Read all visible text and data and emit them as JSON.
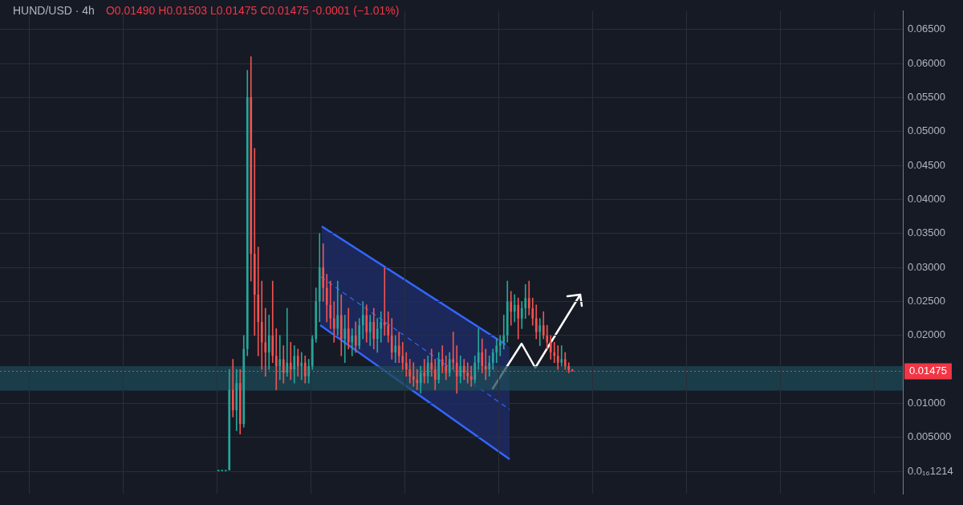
{
  "chart_data": {
    "type": "candlestick",
    "title": "HUND/USD · 4h",
    "subtitle": "O0.01490 H0.01503 L0.01475 C0.01475 -0.0001 (−1.01%)",
    "categories": [
      null,
      null,
      null,
      null,
      null,
      null,
      null,
      null,
      null,
      null,
      null,
      null,
      null,
      null,
      null,
      null,
      null,
      null,
      null,
      null,
      null,
      null,
      null,
      null,
      null,
      null,
      null,
      null,
      null,
      null,
      null,
      null,
      null,
      null,
      null,
      null,
      null,
      null,
      null,
      null,
      null,
      null,
      null,
      null,
      null,
      null,
      null,
      null,
      null,
      null,
      null,
      null,
      null,
      null,
      null,
      null,
      null,
      null,
      null,
      null,
      null,
      null,
      null,
      null,
      null,
      null,
      null,
      null,
      null,
      null,
      null,
      null,
      null,
      null,
      null,
      null,
      null,
      null,
      null,
      null,
      null,
      null,
      null,
      null,
      null,
      null,
      null,
      null,
      null,
      null,
      null,
      null,
      null,
      null,
      null,
      null,
      null,
      null,
      null,
      null,
      null,
      null,
      null,
      null,
      null,
      null,
      null,
      null,
      null,
      null,
      null,
      null,
      null,
      null,
      null,
      null,
      null,
      null,
      null,
      null,
      null,
      null,
      null,
      null,
      null,
      null,
      null,
      null,
      null,
      null,
      null,
      null,
      null,
      null,
      null,
      null,
      null,
      null,
      null,
      null,
      null,
      null,
      null,
      null,
      null,
      null,
      null,
      null,
      null,
      null,
      null,
      null,
      null,
      null,
      null,
      null,
      null,
      null,
      null,
      null,
      null,
      null,
      null,
      null,
      null,
      null,
      null,
      null,
      null,
      null,
      null,
      null,
      null,
      null,
      null,
      null,
      null,
      null,
      null,
      null,
      null,
      null,
      null,
      null,
      null,
      null,
      null,
      null,
      null,
      null,
      null,
      null,
      null,
      null,
      null,
      null,
      null,
      null,
      null,
      null,
      null,
      null,
      null,
      null,
      null,
      null,
      null,
      null,
      null,
      null,
      null,
      null,
      null,
      null,
      null,
      null,
      null,
      null,
      null,
      null,
      null,
      null,
      null,
      null,
      null,
      null,
      null,
      null,
      null,
      null,
      null,
      null,
      null,
      null,
      null,
      null,
      null,
      null,
      null,
      null,
      null,
      null,
      null,
      null,
      null,
      null,
      null,
      null,
      null,
      null
    ],
    "ohlc": [
      null,
      null,
      null,
      null,
      null,
      null,
      null,
      null,
      null,
      null,
      null,
      null,
      null,
      null,
      null,
      null,
      null,
      null,
      null,
      null,
      null,
      null,
      null,
      null,
      null,
      null,
      null,
      null,
      null,
      null,
      null,
      null,
      null,
      null,
      null,
      null,
      null,
      null,
      null,
      null,
      null,
      null,
      null,
      null,
      null,
      null,
      null,
      null,
      null,
      null,
      null,
      null,
      null,
      null,
      null,
      null,
      null,
      null,
      null,
      null,
      [
        0.0002,
        0.0002,
        0.0002,
        0.0002
      ],
      [
        0.0002,
        0.0002,
        0.0002,
        0.0002
      ],
      [
        0.0002,
        0.0002,
        0.0002,
        0.0002
      ],
      [
        0.0002,
        0.015,
        0.0002,
        0.012
      ],
      [
        0.012,
        0.0165,
        0.008,
        0.009
      ],
      [
        0.009,
        0.015,
        0.006,
        0.013
      ],
      [
        0.013,
        0.015,
        0.0055,
        0.007
      ],
      [
        0.007,
        0.02,
        0.0065,
        0.018
      ],
      [
        0.018,
        0.059,
        0.017,
        0.055
      ],
      [
        0.055,
        0.061,
        0.028,
        0.032
      ],
      [
        0.032,
        0.0475,
        0.02,
        0.026
      ],
      [
        0.026,
        0.033,
        0.017,
        0.022
      ],
      [
        0.022,
        0.028,
        0.015,
        0.019
      ],
      [
        0.019,
        0.024,
        0.014,
        0.0175
      ],
      [
        0.0175,
        0.023,
        0.015,
        0.02
      ],
      [
        0.02,
        0.028,
        0.016,
        0.017
      ],
      [
        0.017,
        0.021,
        0.012,
        0.0155
      ],
      [
        0.0155,
        0.02,
        0.0135,
        0.0165
      ],
      [
        0.0165,
        0.0185,
        0.013,
        0.0145
      ],
      [
        0.0145,
        0.024,
        0.014,
        0.016
      ],
      [
        0.016,
        0.019,
        0.0135,
        0.015
      ],
      [
        0.015,
        0.0185,
        0.013,
        0.017
      ],
      [
        0.017,
        0.018,
        0.014,
        0.0155
      ],
      [
        0.0155,
        0.0175,
        0.0135,
        0.016
      ],
      [
        0.016,
        0.017,
        0.013,
        0.014
      ],
      [
        0.014,
        0.0165,
        0.013,
        0.0155
      ],
      [
        0.0155,
        0.02,
        0.015,
        0.0195
      ],
      [
        0.0195,
        0.027,
        0.019,
        0.025
      ],
      [
        0.025,
        0.035,
        0.022,
        0.03
      ],
      [
        0.03,
        0.0335,
        0.025,
        0.027
      ],
      [
        0.027,
        0.029,
        0.022,
        0.0245
      ],
      [
        0.0245,
        0.028,
        0.021,
        0.0225
      ],
      [
        0.0225,
        0.025,
        0.019,
        0.021
      ],
      [
        0.021,
        0.028,
        0.02,
        0.023
      ],
      [
        0.023,
        0.026,
        0.017,
        0.0195
      ],
      [
        0.0195,
        0.023,
        0.016,
        0.021
      ],
      [
        0.021,
        0.024,
        0.018,
        0.019
      ],
      [
        0.019,
        0.021,
        0.017,
        0.02
      ],
      [
        0.02,
        0.022,
        0.0175,
        0.0185
      ],
      [
        0.0185,
        0.0225,
        0.018,
        0.0215
      ],
      [
        0.0215,
        0.025,
        0.0195,
        0.023
      ],
      [
        0.023,
        0.0245,
        0.019,
        0.0205
      ],
      [
        0.0205,
        0.023,
        0.0185,
        0.022
      ],
      [
        0.022,
        0.024,
        0.018,
        0.0195
      ],
      [
        0.0195,
        0.0225,
        0.0175,
        0.021
      ],
      [
        0.021,
        0.0235,
        0.019,
        0.022
      ],
      [
        0.022,
        0.03,
        0.02,
        0.0215
      ],
      [
        0.0215,
        0.0235,
        0.019,
        0.02
      ],
      [
        0.02,
        0.0225,
        0.0165,
        0.0175
      ],
      [
        0.0175,
        0.02,
        0.016,
        0.0185
      ],
      [
        0.0185,
        0.0205,
        0.016,
        0.017
      ],
      [
        0.017,
        0.019,
        0.015,
        0.016
      ],
      [
        0.016,
        0.0175,
        0.014,
        0.015
      ],
      [
        0.015,
        0.0165,
        0.013,
        0.014
      ],
      [
        0.014,
        0.016,
        0.0125,
        0.0135
      ],
      [
        0.0135,
        0.015,
        0.012,
        0.013
      ],
      [
        0.013,
        0.0155,
        0.0115,
        0.0145
      ],
      [
        0.0145,
        0.0165,
        0.013,
        0.014
      ],
      [
        0.014,
        0.017,
        0.013,
        0.016
      ],
      [
        0.016,
        0.018,
        0.014,
        0.015
      ],
      [
        0.015,
        0.0165,
        0.012,
        0.0135
      ],
      [
        0.0135,
        0.0175,
        0.013,
        0.0165
      ],
      [
        0.0165,
        0.0185,
        0.0145,
        0.0155
      ],
      [
        0.0155,
        0.017,
        0.0135,
        0.0145
      ],
      [
        0.0145,
        0.0175,
        0.014,
        0.0165
      ],
      [
        0.0165,
        0.0205,
        0.015,
        0.016
      ],
      [
        0.016,
        0.0185,
        0.0115,
        0.014
      ],
      [
        0.014,
        0.017,
        0.013,
        0.0155
      ],
      [
        0.0155,
        0.0165,
        0.0135,
        0.0145
      ],
      [
        0.0145,
        0.016,
        0.013,
        0.014
      ],
      [
        0.014,
        0.0155,
        0.0125,
        0.0135
      ],
      [
        0.0135,
        0.017,
        0.013,
        0.016
      ],
      [
        0.016,
        0.021,
        0.015,
        0.0175
      ],
      [
        0.0175,
        0.0195,
        0.0145,
        0.0155
      ],
      [
        0.0155,
        0.018,
        0.0135,
        0.015
      ],
      [
        0.015,
        0.017,
        0.014,
        0.016
      ],
      [
        0.016,
        0.018,
        0.015,
        0.0175
      ],
      [
        0.0175,
        0.0195,
        0.016,
        0.0185
      ],
      [
        0.0185,
        0.02,
        0.017,
        0.019
      ],
      [
        0.019,
        0.023,
        0.018,
        0.02
      ],
      [
        0.02,
        0.028,
        0.019,
        0.025
      ],
      [
        0.025,
        0.0265,
        0.0215,
        0.0235
      ],
      [
        0.0235,
        0.026,
        0.022,
        0.0245
      ],
      [
        0.0245,
        0.0255,
        0.0195,
        0.0225
      ],
      [
        0.0225,
        0.025,
        0.021,
        0.024
      ],
      [
        0.024,
        0.0275,
        0.0225,
        0.0255
      ],
      [
        0.0255,
        0.028,
        0.023,
        0.024
      ],
      [
        0.024,
        0.0255,
        0.0215,
        0.0225
      ],
      [
        0.0225,
        0.0245,
        0.0195,
        0.0205
      ],
      [
        0.0205,
        0.0225,
        0.0185,
        0.0215
      ],
      [
        0.0215,
        0.0235,
        0.0195,
        0.02
      ],
      [
        0.02,
        0.0215,
        0.018,
        0.019
      ],
      [
        0.019,
        0.02,
        0.0165,
        0.0175
      ],
      [
        0.0175,
        0.019,
        0.016,
        0.017
      ],
      [
        0.017,
        0.0185,
        0.015,
        0.016
      ],
      [
        0.016,
        0.0185,
        0.0155,
        0.0165
      ],
      [
        0.0165,
        0.0175,
        0.015,
        0.0155
      ],
      [
        0.0155,
        0.016,
        0.0145,
        0.0149
      ],
      [
        0.0149,
        0.01503,
        0.01475,
        0.01475
      ],
      null,
      null,
      null,
      null,
      null,
      null,
      null,
      null,
      null,
      null,
      null,
      null,
      null,
      null,
      null,
      null,
      null,
      null,
      null,
      null,
      null,
      null,
      null,
      null,
      null,
      null,
      null,
      null,
      null,
      null,
      null,
      null,
      null,
      null,
      null,
      null,
      null,
      null,
      null,
      null,
      null,
      null,
      null,
      null,
      null,
      null,
      null,
      null,
      null,
      null,
      null,
      null,
      null,
      null,
      null,
      null,
      null,
      null,
      null,
      null,
      null,
      null,
      null,
      null,
      null,
      null,
      null,
      null,
      null,
      null,
      null,
      null,
      null,
      null,
      null,
      null,
      null,
      null,
      null,
      null,
      null,
      null,
      null,
      null,
      null,
      null,
      null,
      null,
      null,
      null,
      null
    ],
    "ylim": [
      -0.0033,
      0.0677
    ],
    "yticks": [
      {
        "value": 0,
        "label": "0.0₁₆1214"
      },
      {
        "value": 0.005,
        "label": "0.005000"
      },
      {
        "value": 0.01,
        "label": "0.01000"
      },
      {
        "value": 0.02,
        "label": "0.02000"
      },
      {
        "value": 0.025,
        "label": "0.02500"
      },
      {
        "value": 0.03,
        "label": "0.03000"
      },
      {
        "value": 0.035,
        "label": "0.03500"
      },
      {
        "value": 0.04,
        "label": "0.04000"
      },
      {
        "value": 0.045,
        "label": "0.04500"
      },
      {
        "value": 0.05,
        "label": "0.05000"
      },
      {
        "value": 0.055,
        "label": "0.05500"
      },
      {
        "value": 0.06,
        "label": "0.06000"
      },
      {
        "value": 0.065,
        "label": "0.06500"
      }
    ],
    "ref_lines": [
      {
        "axis": "y",
        "value": 0.01475,
        "label": "0.01475",
        "color": "#f23645",
        "line_style": "dotted"
      }
    ],
    "bands": [
      {
        "axis": "y",
        "from": 0.0119,
        "to": 0.0155,
        "color": "#1d4a57"
      }
    ],
    "grid": true,
    "legend": false
  }
}
